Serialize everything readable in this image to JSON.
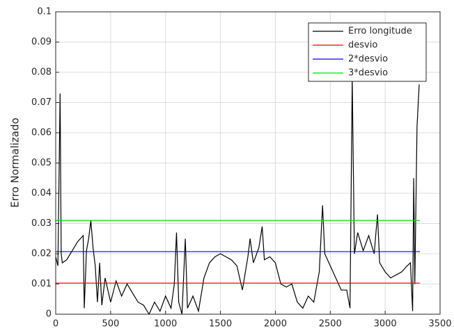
{
  "chart_data": {
    "type": "line",
    "ylabel": "Erro Normalizado",
    "xlim": [
      0,
      3500
    ],
    "xticks": [
      0,
      500,
      1000,
      1500,
      2000,
      2500,
      3000,
      3500
    ],
    "ylim": [
      0,
      0.1
    ],
    "yticks": [
      0,
      0.01,
      0.02,
      0.03,
      0.04,
      0.05,
      0.06,
      0.07,
      0.08,
      0.09,
      0.1
    ],
    "grid": true,
    "legend": "top-right",
    "series": [
      {
        "name": "Erro longitude",
        "color": "#000000",
        "x": [
          0,
          20,
          40,
          50,
          60,
          100,
          150,
          200,
          250,
          260,
          280,
          300,
          320,
          340,
          360,
          380,
          400,
          420,
          450,
          500,
          550,
          600,
          650,
          700,
          750,
          800,
          850,
          900,
          950,
          1000,
          1050,
          1080,
          1100,
          1120,
          1150,
          1180,
          1200,
          1250,
          1300,
          1350,
          1400,
          1450,
          1500,
          1550,
          1600,
          1650,
          1700,
          1750,
          1770,
          1800,
          1850,
          1880,
          1900,
          1950,
          2000,
          2050,
          2100,
          2150,
          2200,
          2250,
          2300,
          2350,
          2400,
          2430,
          2450,
          2500,
          2550,
          2600,
          2650,
          2680,
          2700,
          2720,
          2750,
          2800,
          2850,
          2900,
          2930,
          2950,
          3000,
          3050,
          3100,
          3150,
          3200,
          3230,
          3250,
          3260,
          3270,
          3290,
          3310
        ],
        "values": [
          0.019,
          0.016,
          0.073,
          0.02,
          0.017,
          0.018,
          0.021,
          0.024,
          0.026,
          0.002,
          0.021,
          0.025,
          0.031,
          0.022,
          0.016,
          0.004,
          0.017,
          0.003,
          0.012,
          0.004,
          0.011,
          0.006,
          0.01,
          0.007,
          0.004,
          0.003,
          0.0,
          0.004,
          0.001,
          0.006,
          0.002,
          0.01,
          0.027,
          0.004,
          0.0,
          0.025,
          0.002,
          0.006,
          0.001,
          0.012,
          0.017,
          0.019,
          0.02,
          0.019,
          0.018,
          0.016,
          0.008,
          0.019,
          0.025,
          0.017,
          0.022,
          0.029,
          0.018,
          0.019,
          0.017,
          0.01,
          0.009,
          0.01,
          0.004,
          0.002,
          0.006,
          0.004,
          0.014,
          0.036,
          0.02,
          0.016,
          0.012,
          0.008,
          0.008,
          0.002,
          0.078,
          0.02,
          0.027,
          0.021,
          0.026,
          0.02,
          0.033,
          0.017,
          0.014,
          0.012,
          0.013,
          0.014,
          0.016,
          0.017,
          0.001,
          0.045,
          0.01,
          0.062,
          0.076
        ]
      },
      {
        "name": "desvio",
        "color": "#ff0000",
        "x": [
          0,
          3316
        ],
        "values": [
          0.0103,
          0.0103
        ]
      },
      {
        "name": "2*desvio",
        "color": "#0000ff",
        "x": [
          0,
          3316
        ],
        "values": [
          0.0207,
          0.0207
        ]
      },
      {
        "name": "3*desvio",
        "color": "#00e000",
        "x": [
          0,
          3316
        ],
        "values": [
          0.031,
          0.031
        ]
      }
    ]
  }
}
